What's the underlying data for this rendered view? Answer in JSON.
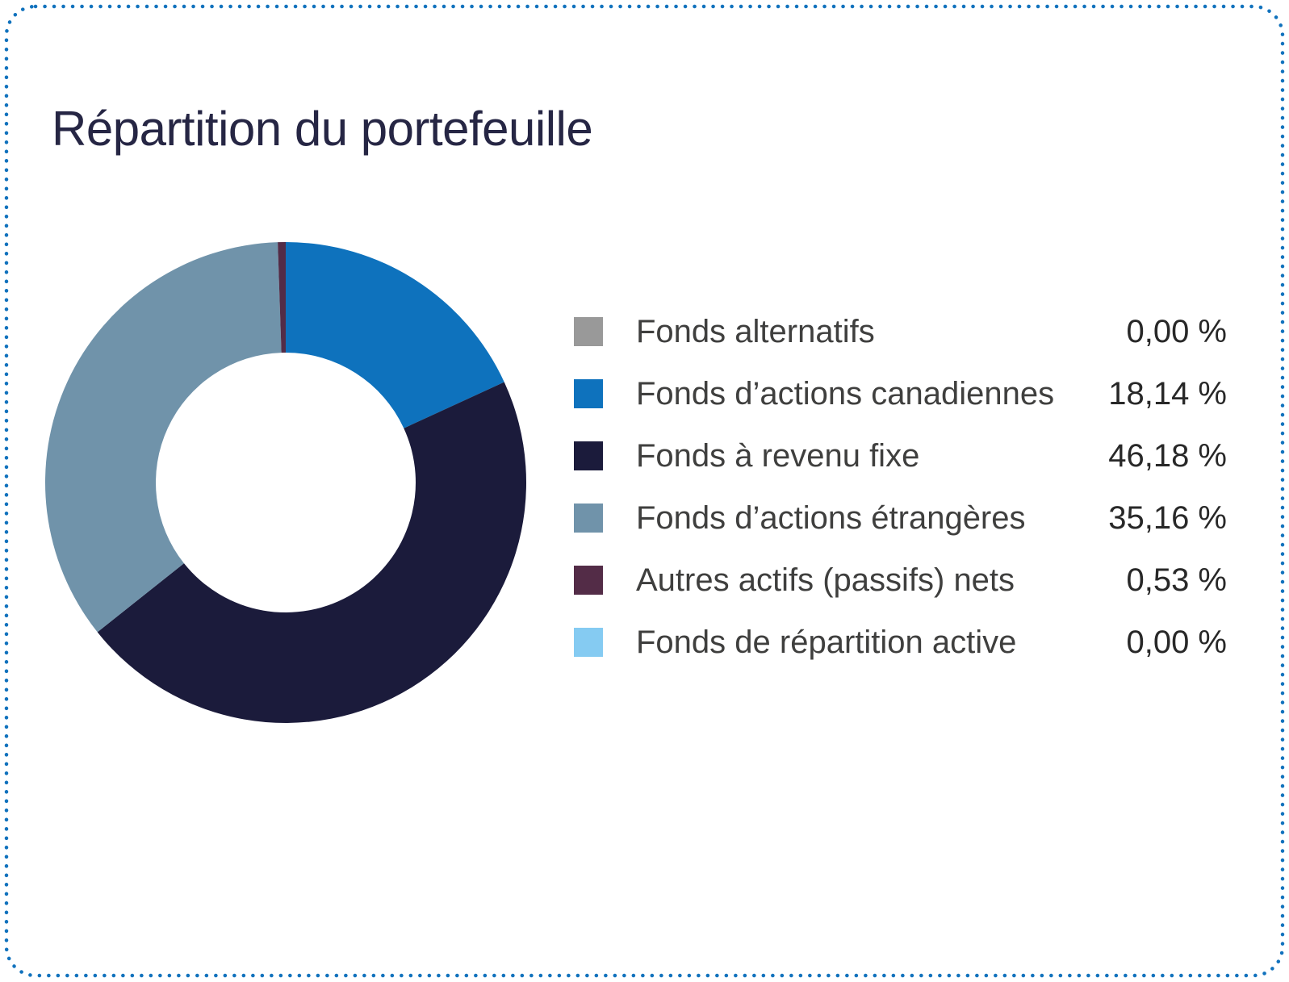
{
  "card": {
    "title": "Répartition du portefeuille"
  },
  "colors": {
    "background": "#FFFFFF",
    "border": "#1172BD",
    "title": "#262644",
    "legend_label": "#3F3F3E",
    "legend_value": "#282828"
  },
  "chart_data": {
    "type": "pie",
    "variant": "donut",
    "title": "Répartition du portefeuille",
    "donut_hole_ratio": 0.54,
    "start_angle_deg": 0,
    "direction": "clockwise",
    "legend_position": "right",
    "segments": [
      {
        "label": "Fonds alternatifs",
        "value": 0.0,
        "value_label": "0,00 %",
        "color": "#999999"
      },
      {
        "label": "Fonds d’actions canadiennes",
        "value": 18.14,
        "value_label": "18,14 %",
        "color": "#0E72BD"
      },
      {
        "label": "Fonds à revenu fixe",
        "value": 46.18,
        "value_label": "46,18 %",
        "color": "#1B1B3B"
      },
      {
        "label": "Fonds d’actions étrangères",
        "value": 35.16,
        "value_label": "35,16 %",
        "color": "#7093AA"
      },
      {
        "label": "Autres actifs (passifs) nets",
        "value": 0.53,
        "value_label": "0,53 %",
        "color": "#532C47"
      },
      {
        "label": "Fonds de répartition active",
        "value": 0.0,
        "value_label": "0,00 %",
        "color": "#85CBF2"
      }
    ]
  }
}
